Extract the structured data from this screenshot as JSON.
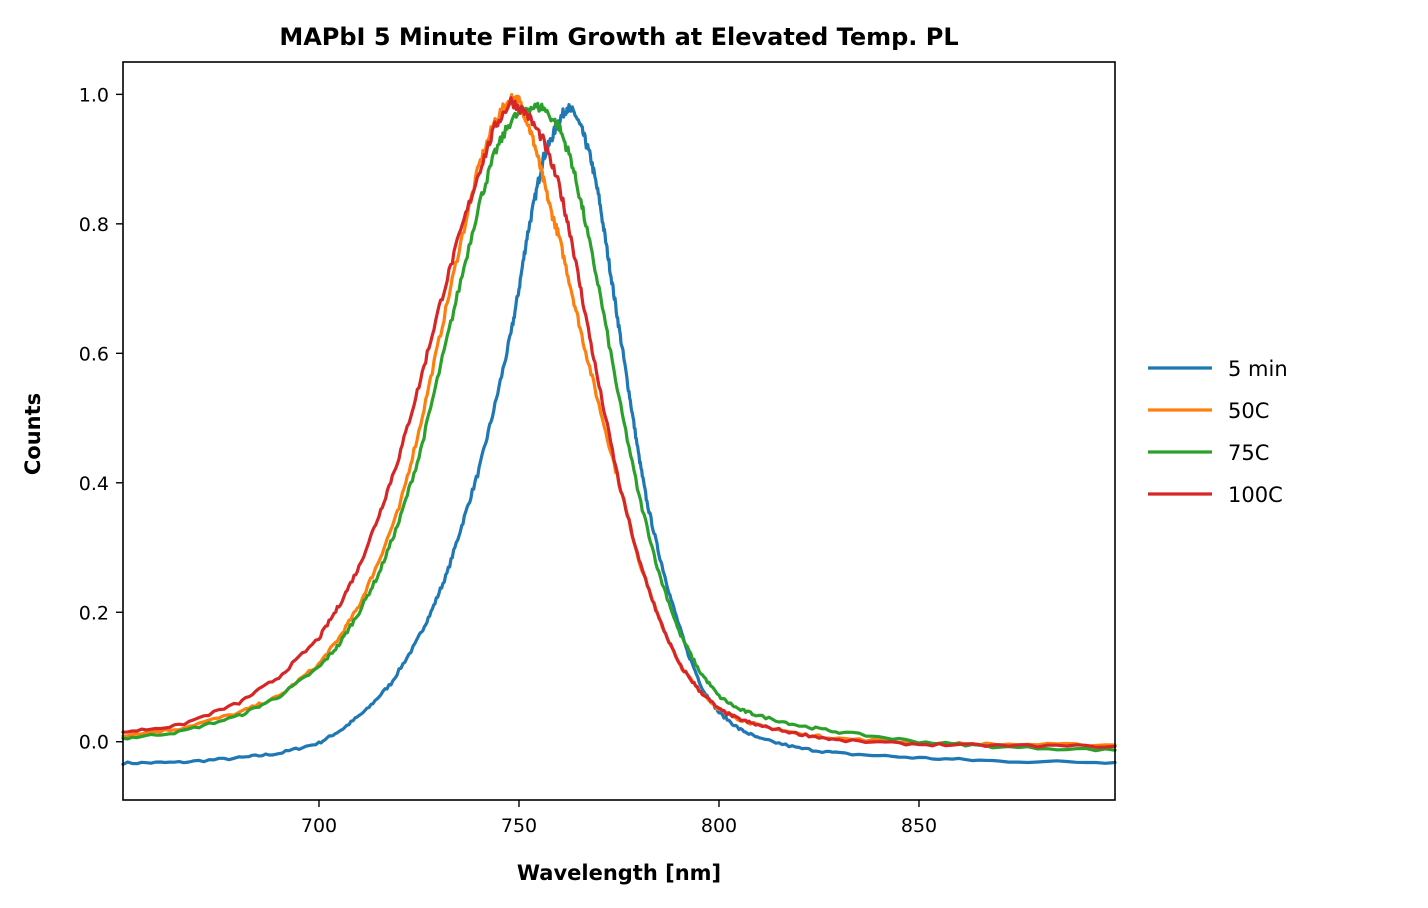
{
  "chart_data": {
    "type": "line",
    "title": "MAPbI 5 Minute Film Growth at Elevated Temp. PL",
    "xlabel": "Wavelength [nm]",
    "ylabel": "Counts",
    "xlim": [
      651,
      899
    ],
    "ylim": [
      -0.09,
      1.05
    ],
    "xticks": [
      700,
      750,
      800,
      850
    ],
    "yticks": [
      0.0,
      0.2,
      0.4,
      0.6,
      0.8,
      1.0
    ],
    "xtick_labels": [
      "700",
      "750",
      "800",
      "850"
    ],
    "ytick_labels": [
      "0.0",
      "0.2",
      "0.4",
      "0.6",
      "0.8",
      "1.0"
    ],
    "grid": false,
    "legend_position": "right, outside plot",
    "series": [
      {
        "name": "5 min",
        "color": "#1f77b4",
        "x": [
          651,
          665,
          680,
          690,
          700,
          706,
          712,
          718,
          724,
          728,
          732,
          736,
          740,
          744,
          748,
          750,
          752,
          754,
          756,
          758,
          760,
          762,
          764,
          766,
          768,
          770,
          772,
          774,
          776,
          778,
          780,
          782,
          785,
          788,
          792,
          796,
          800,
          805,
          810,
          820,
          830,
          850,
          870,
          899
        ],
        "y": [
          -0.033,
          -0.032,
          -0.025,
          -0.018,
          -0.002,
          0.02,
          0.05,
          0.09,
          0.15,
          0.2,
          0.26,
          0.34,
          0.42,
          0.52,
          0.63,
          0.7,
          0.78,
          0.84,
          0.9,
          0.93,
          0.96,
          0.98,
          0.97,
          0.94,
          0.9,
          0.84,
          0.76,
          0.68,
          0.6,
          0.52,
          0.44,
          0.37,
          0.29,
          0.22,
          0.14,
          0.08,
          0.045,
          0.02,
          0.005,
          -0.01,
          -0.018,
          -0.025,
          -0.03,
          -0.032
        ]
      },
      {
        "name": "50C",
        "color": "#ff7f0e",
        "x": [
          651,
          665,
          680,
          690,
          700,
          705,
          710,
          715,
          720,
          725,
          730,
          735,
          740,
          744,
          748,
          750,
          752,
          754,
          756,
          758,
          760,
          763,
          766,
          770,
          775,
          780,
          785,
          790,
          795,
          800,
          805,
          810,
          820,
          830,
          850,
          870,
          899
        ],
        "y": [
          0.01,
          0.02,
          0.045,
          0.07,
          0.12,
          0.16,
          0.21,
          0.28,
          0.36,
          0.48,
          0.62,
          0.76,
          0.89,
          0.96,
          0.995,
          0.99,
          0.96,
          0.92,
          0.87,
          0.82,
          0.78,
          0.7,
          0.62,
          0.52,
          0.4,
          0.28,
          0.19,
          0.12,
          0.08,
          0.05,
          0.035,
          0.025,
          0.012,
          0.005,
          -0.002,
          -0.004,
          -0.005
        ]
      },
      {
        "name": "75C",
        "color": "#2ca02c",
        "x": [
          651,
          665,
          680,
          690,
          700,
          705,
          710,
          715,
          720,
          725,
          730,
          735,
          740,
          744,
          748,
          752,
          756,
          760,
          763,
          766,
          770,
          775,
          780,
          785,
          790,
          795,
          800,
          805,
          810,
          820,
          830,
          850,
          870,
          899
        ],
        "y": [
          0.005,
          0.015,
          0.04,
          0.07,
          0.115,
          0.15,
          0.2,
          0.26,
          0.34,
          0.44,
          0.57,
          0.7,
          0.83,
          0.91,
          0.96,
          0.98,
          0.98,
          0.95,
          0.9,
          0.82,
          0.7,
          0.53,
          0.38,
          0.26,
          0.17,
          0.11,
          0.07,
          0.05,
          0.04,
          0.025,
          0.015,
          0.0,
          -0.008,
          -0.013
        ]
      },
      {
        "name": "100C",
        "color": "#d62728",
        "x": [
          651,
          665,
          680,
          690,
          700,
          705,
          710,
          715,
          720,
          725,
          730,
          735,
          740,
          744,
          748,
          752,
          756,
          760,
          763,
          766,
          770,
          775,
          780,
          785,
          790,
          795,
          800,
          805,
          810,
          820,
          830,
          850,
          870,
          899
        ],
        "y": [
          0.015,
          0.025,
          0.06,
          0.1,
          0.16,
          0.21,
          0.27,
          0.35,
          0.44,
          0.55,
          0.67,
          0.78,
          0.88,
          0.95,
          0.99,
          0.97,
          0.93,
          0.86,
          0.78,
          0.68,
          0.55,
          0.4,
          0.28,
          0.19,
          0.12,
          0.08,
          0.05,
          0.035,
          0.025,
          0.012,
          0.002,
          -0.004,
          -0.006,
          -0.007
        ]
      }
    ]
  }
}
